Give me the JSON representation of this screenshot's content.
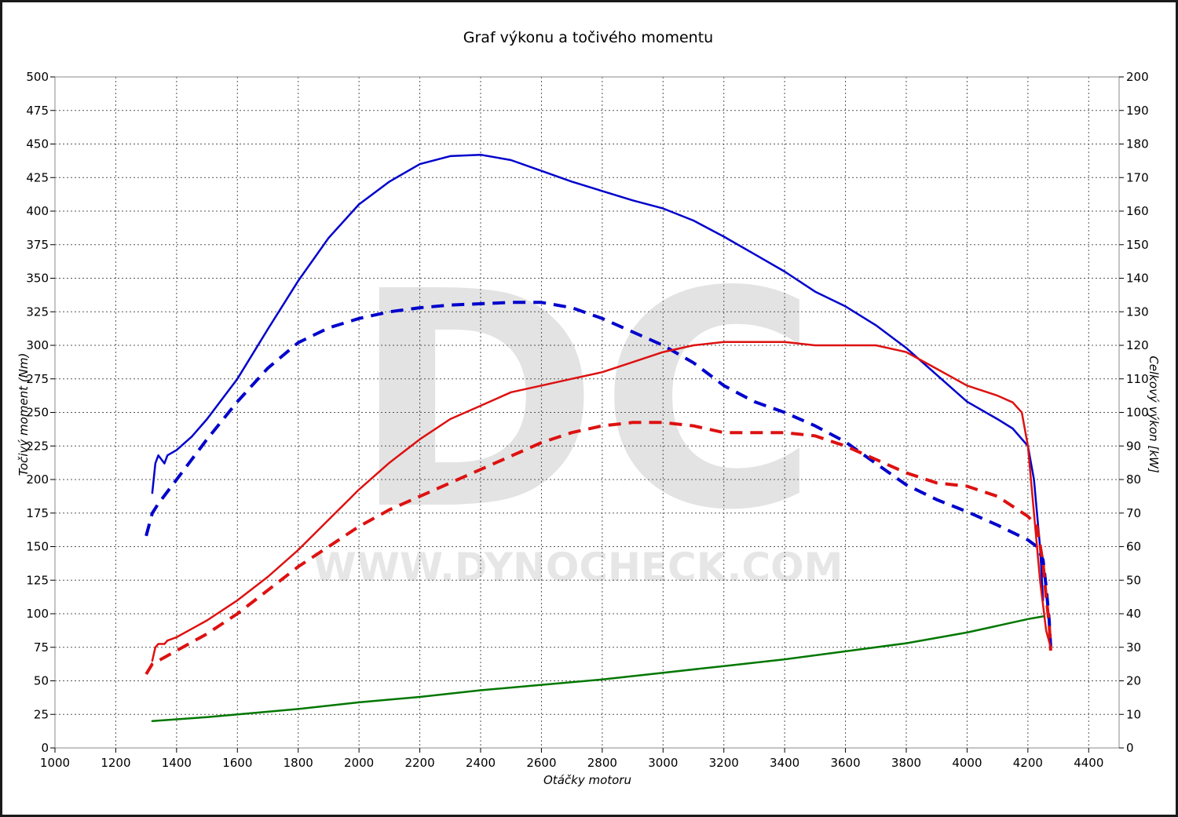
{
  "chart_data": {
    "type": "line",
    "title": "Graf výkonu a točivého momentu",
    "xlabel": "Otáčky motoru",
    "ylabel_left": "Točivý moment (Nm)",
    "ylabel_right": "Celkový výkon [kW]",
    "xlim": [
      1000,
      4500
    ],
    "ylim_left": [
      0,
      500
    ],
    "ylim_right": [
      0,
      200
    ],
    "x_ticks": [
      1000,
      1200,
      1400,
      1600,
      1800,
      2000,
      2200,
      2400,
      2600,
      2800,
      3000,
      3200,
      3400,
      3600,
      3800,
      4000,
      4200,
      4400
    ],
    "y_ticks_left": [
      0,
      25,
      50,
      75,
      100,
      125,
      150,
      175,
      200,
      225,
      250,
      275,
      300,
      325,
      350,
      375,
      400,
      425,
      450,
      475,
      500
    ],
    "y_ticks_right": [
      0,
      10,
      20,
      30,
      40,
      50,
      60,
      70,
      80,
      90,
      100,
      110,
      120,
      130,
      140,
      150,
      160,
      170,
      180,
      190,
      200
    ],
    "grid": true,
    "watermark": {
      "big": "DC",
      "small": "WWW.DYNOCHECK.COM"
    },
    "series": [
      {
        "color": "#0000cc",
        "style": "solid",
        "axis": "left",
        "x": [
          1320,
          1330,
          1340,
          1350,
          1360,
          1370,
          1400,
          1450,
          1500,
          1600,
          1700,
          1800,
          1900,
          2000,
          2100,
          2200,
          2300,
          2400,
          2500,
          2600,
          2700,
          2800,
          2900,
          3000,
          3100,
          3200,
          3300,
          3400,
          3500,
          3600,
          3700,
          3800,
          3900,
          4000,
          4100,
          4150,
          4200,
          4220,
          4240,
          4250
        ],
        "y": [
          190,
          212,
          218,
          215,
          212,
          218,
          222,
          232,
          245,
          275,
          312,
          348,
          380,
          405,
          422,
          435,
          441,
          442,
          438,
          430,
          422,
          415,
          408,
          402,
          393,
          381,
          368,
          355,
          340,
          329,
          315,
          298,
          278,
          258,
          245,
          238,
          225,
          200,
          150,
          110
        ]
      },
      {
        "color": "#0000cc",
        "style": "dashed",
        "axis": "left",
        "x": [
          1300,
          1320,
          1340,
          1360,
          1400,
          1450,
          1500,
          1600,
          1700,
          1800,
          1900,
          2000,
          2100,
          2200,
          2300,
          2400,
          2500,
          2600,
          2700,
          2800,
          2900,
          3000,
          3100,
          3200,
          3300,
          3400,
          3500,
          3600,
          3700,
          3800,
          3900,
          4000,
          4100,
          4200,
          4230,
          4250,
          4260,
          4270,
          4275
        ],
        "y": [
          158,
          175,
          182,
          188,
          200,
          215,
          230,
          258,
          283,
          302,
          313,
          320,
          325,
          328,
          330,
          331,
          332,
          332,
          328,
          320,
          310,
          300,
          287,
          270,
          258,
          250,
          240,
          228,
          212,
          196,
          185,
          176,
          166,
          155,
          150,
          140,
          120,
          95,
          75
        ]
      },
      {
        "color": "#dd1111",
        "style": "solid",
        "axis": "right",
        "x": [
          1320,
          1330,
          1340,
          1350,
          1360,
          1370,
          1400,
          1500,
          1600,
          1700,
          1800,
          1900,
          2000,
          2100,
          2200,
          2300,
          2400,
          2500,
          2600,
          2700,
          2800,
          2900,
          3000,
          3100,
          3200,
          3300,
          3400,
          3500,
          3600,
          3700,
          3800,
          3900,
          4000,
          4100,
          4150,
          4180,
          4200,
          4220,
          4240,
          4260,
          4275
        ],
        "y": [
          26,
          30,
          31,
          31,
          31,
          32,
          33,
          38,
          44,
          51,
          59,
          68,
          77,
          85,
          92,
          98,
          102,
          106,
          108,
          110,
          112,
          115,
          118,
          120,
          121,
          121,
          121,
          120,
          120,
          120,
          118,
          113,
          108,
          105,
          103,
          100,
          90,
          70,
          50,
          35,
          30
        ]
      },
      {
        "color": "#dd1111",
        "style": "dashed",
        "axis": "right",
        "x": [
          1300,
          1320,
          1340,
          1360,
          1400,
          1500,
          1600,
          1700,
          1800,
          1900,
          2000,
          2100,
          2200,
          2300,
          2400,
          2500,
          2600,
          2700,
          2800,
          2900,
          3000,
          3100,
          3200,
          3300,
          3400,
          3500,
          3600,
          3700,
          3800,
          3900,
          4000,
          4100,
          4150,
          4200,
          4230,
          4250,
          4260,
          4270,
          4275
        ],
        "y": [
          22,
          25,
          26,
          27,
          29,
          34,
          40,
          47,
          54,
          60,
          66,
          71,
          75,
          79,
          83,
          87,
          91,
          94,
          96,
          97,
          97,
          96,
          94,
          94,
          94,
          93,
          90,
          86,
          82,
          79,
          78,
          75,
          72,
          69,
          66,
          55,
          45,
          37,
          29
        ]
      },
      {
        "color": "#007700",
        "style": "solid",
        "axis": "left",
        "x": [
          1320,
          1500,
          1800,
          2000,
          2200,
          2400,
          2600,
          2800,
          3000,
          3200,
          3400,
          3600,
          3800,
          4000,
          4200,
          4250
        ],
        "y": [
          20,
          23,
          29,
          34,
          38,
          43,
          47,
          51,
          56,
          61,
          66,
          72,
          78,
          86,
          96,
          98
        ]
      }
    ]
  }
}
